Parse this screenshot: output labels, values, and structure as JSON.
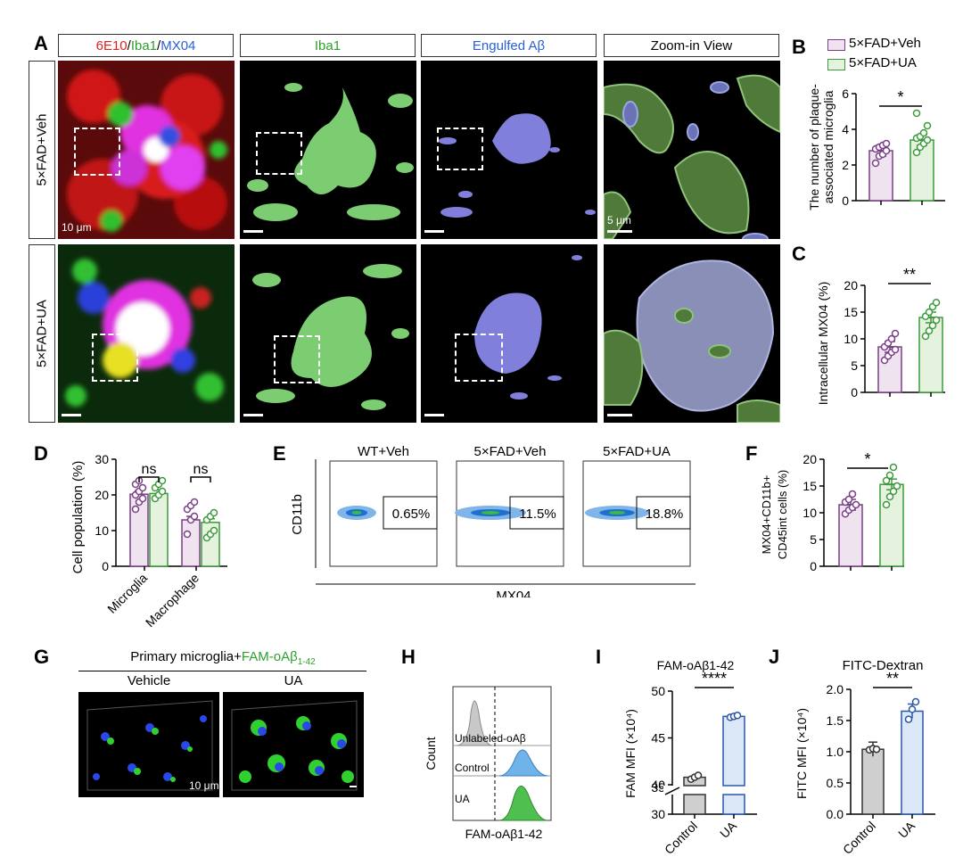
{
  "panels": {
    "A": "A",
    "B": "B",
    "C": "C",
    "D": "D",
    "E": "E",
    "F": "F",
    "G": "G",
    "H": "H",
    "I": "I",
    "J": "J"
  },
  "colors": {
    "veh_fill": "#efe3f0",
    "veh_stroke": "#7a3e86",
    "ua_fill": "#e4f2de",
    "ua_stroke": "#3c9a3c",
    "ctrl_fill": "#cfcfcf",
    "ua_blue_fill": "#dce8f7",
    "ua_blue_stroke": "#2b57a8",
    "iba1": "#6ec96a",
    "abeta": "#7a7ad6"
  },
  "panelA": {
    "headers": {
      "c1_red": "6E10",
      "c1_slash1": "/",
      "c1_green": "Iba1",
      "c1_slash2": "/",
      "c1_blue": "MX04",
      "c2": "Iba1",
      "c3": "Engulfed Aβ",
      "c4": "Zoom-in View"
    },
    "rows": [
      "5×FAD+Veh",
      "5×FAD+UA"
    ],
    "scalebars": {
      "r1c1": "10 μm",
      "r1c4": "5 μm"
    }
  },
  "panelB": {
    "legend": [
      "5×FAD+Veh",
      "5×FAD+UA"
    ],
    "ylabel_l1": "The number of plaque-",
    "ylabel_l2": "associated microglia",
    "yticks": [
      "0",
      "2",
      "4",
      "6"
    ],
    "sig": "*"
  },
  "panelC": {
    "ylabel": "Intracellular MX04 (%)",
    "yticks": [
      "0",
      "5",
      "10",
      "15",
      "20"
    ],
    "sig": "**"
  },
  "panelD": {
    "ylabel": "Cell population (%)",
    "yticks": [
      "0",
      "10",
      "20",
      "30"
    ],
    "xcats": [
      "Microglia",
      "Macrophage"
    ],
    "sig": [
      "ns",
      "ns"
    ]
  },
  "panelE": {
    "titles": [
      "WT+Veh",
      "5×FAD+Veh",
      "5×FAD+UA"
    ],
    "gates": [
      "0.65%",
      "11.5%",
      "18.8%"
    ],
    "xlabel": "MX04",
    "ylabel": "CD11b"
  },
  "panelF": {
    "ylabel_l1": "MX04",
    "ylabel_l1_sup": "+",
    "ylabel_l1b": "CD11b",
    "ylabel_l1b_sup": "+",
    "ylabel_l2": "CD45",
    "ylabel_l2_sup": "int",
    "ylabel_l2b": " cells (%)",
    "yticks": [
      "0",
      "5",
      "10",
      "15",
      "20"
    ],
    "sig": "*"
  },
  "panelG": {
    "title_pre": "Primary microglia+",
    "title_green": "FAM-oAβ",
    "title_sub": "1-42",
    "cols": [
      "Vehicle",
      "UA"
    ],
    "scalebar": "10 μm"
  },
  "panelH": {
    "ylabel": "Count",
    "xlabel": "FAM-oAβ",
    "xlabel_sub": "1-42",
    "tracks": [
      "Unlabeled-oAβ",
      "Control",
      "UA"
    ],
    "track0_sub": "1-42"
  },
  "panelI": {
    "title": "FAM-oAβ",
    "title_sub": "1-42",
    "ylabel": "FAM MFI (×10⁴)",
    "yticks": [
      "40",
      "45",
      "50",
      "30",
      "35"
    ],
    "xcats": [
      "Control",
      "UA"
    ],
    "sig": "****"
  },
  "panelJ": {
    "title": "FITC-Dextran",
    "ylabel": "FITC MFI (×10⁴)",
    "yticks": [
      "0.0",
      "0.5",
      "1.0",
      "1.5",
      "2.0"
    ],
    "xcats": [
      "Control",
      "UA"
    ],
    "sig": "**"
  },
  "chart_data": [
    {
      "type": "bar",
      "panel": "B",
      "categories": [
        "5×FAD+Veh",
        "5×FAD+UA"
      ],
      "values": [
        2.8,
        3.4
      ],
      "ylim": [
        0,
        6
      ],
      "points": [
        [
          2.1,
          2.5,
          2.6,
          2.8,
          2.9,
          3.0,
          3.1,
          3.2
        ],
        [
          2.7,
          3.0,
          3.2,
          3.4,
          3.5,
          3.6,
          3.8,
          4.2,
          4.9
        ]
      ]
    },
    {
      "type": "bar",
      "panel": "C",
      "categories": [
        "5×FAD+Veh",
        "5×FAD+UA"
      ],
      "values": [
        8.5,
        14.0
      ],
      "ylim": [
        0,
        20
      ],
      "points": [
        [
          6.0,
          6.8,
          7.5,
          8.0,
          8.5,
          9.2,
          10.0,
          11.0
        ],
        [
          10.5,
          11.5,
          12.5,
          13.5,
          14.2,
          15.0,
          16.0,
          16.8
        ]
      ]
    },
    {
      "type": "bar",
      "panel": "D",
      "categories": [
        "Microglia",
        "Macrophage"
      ],
      "series": [
        {
          "name": "5×FAD+Veh",
          "values": [
            20.2,
            13.0
          ]
        },
        {
          "name": "5×FAD+UA",
          "values": [
            20.4,
            12.3
          ]
        }
      ],
      "ylim": [
        0,
        30
      ]
    },
    {
      "type": "bar",
      "panel": "F",
      "categories": [
        "5×FAD+Veh",
        "5×FAD+UA"
      ],
      "values": [
        11.5,
        15.3
      ],
      "ylim": [
        0,
        20
      ],
      "points": [
        [
          9.8,
          10.5,
          11.0,
          11.5,
          12.0,
          12.5,
          13.5
        ],
        [
          11.5,
          13.0,
          14.0,
          15.0,
          16.0,
          17.0,
          18.5
        ]
      ]
    },
    {
      "type": "bar",
      "panel": "I",
      "categories": [
        "Control",
        "UA"
      ],
      "values": [
        40.8,
        47.3
      ],
      "ylim": [
        30,
        50
      ],
      "points": [
        [
          40.6,
          40.8,
          41.0
        ],
        [
          47.2,
          47.3,
          47.4
        ]
      ]
    },
    {
      "type": "bar",
      "panel": "J",
      "categories": [
        "Control",
        "UA"
      ],
      "values": [
        1.04,
        1.65
      ],
      "ylim": [
        0,
        2
      ],
      "points": [
        [
          1.03,
          1.05,
          1.04
        ],
        [
          1.52,
          1.68,
          1.8
        ]
      ]
    }
  ]
}
